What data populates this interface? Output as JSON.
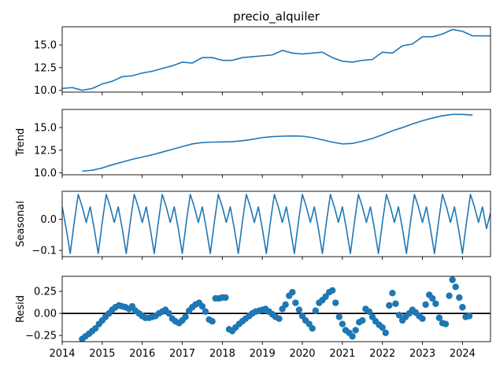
{
  "chart_data": {
    "type": "line",
    "title": "precio_alquiler",
    "x_ticks": [
      "2014",
      "2015",
      "2016",
      "2017",
      "2018",
      "2019",
      "2020",
      "2021",
      "2022",
      "2023",
      "2024"
    ],
    "xlim": [
      2014.0,
      2024.7
    ],
    "line_color": "#1f77b4",
    "zero_line_color": "#000000",
    "panels": [
      {
        "name": "observed",
        "ylabel": "",
        "kind": "line",
        "ylim": [
          9.8,
          17.0
        ],
        "yticks": [
          "10.0",
          "12.5",
          "15.0"
        ],
        "ytick_values": [
          10.0,
          12.5,
          15.0
        ],
        "x": [
          2014.0,
          2014.25,
          2014.5,
          2014.75,
          2015.0,
          2015.25,
          2015.5,
          2015.75,
          2016.0,
          2016.25,
          2016.5,
          2016.75,
          2017.0,
          2017.25,
          2017.5,
          2017.75,
          2018.0,
          2018.25,
          2018.5,
          2018.75,
          2019.0,
          2019.25,
          2019.5,
          2019.75,
          2020.0,
          2020.25,
          2020.5,
          2020.75,
          2021.0,
          2021.25,
          2021.5,
          2021.75,
          2022.0,
          2022.25,
          2022.5,
          2022.75,
          2023.0,
          2023.25,
          2023.5,
          2023.75,
          2024.0,
          2024.25,
          2024.5,
          2024.75
        ],
        "y": [
          10.2,
          10.3,
          10.0,
          10.2,
          10.7,
          11.0,
          11.5,
          11.6,
          11.9,
          12.1,
          12.4,
          12.7,
          13.1,
          13.0,
          13.6,
          13.6,
          13.3,
          13.3,
          13.6,
          13.7,
          13.8,
          13.9,
          14.4,
          14.1,
          14.0,
          14.1,
          14.2,
          13.6,
          13.2,
          13.1,
          13.3,
          13.4,
          14.2,
          14.1,
          14.9,
          15.1,
          15.9,
          15.9,
          16.2,
          16.7,
          16.5,
          16.0,
          16.0,
          16.0
        ]
      },
      {
        "name": "trend",
        "ylabel": "Trend",
        "kind": "line",
        "ylim": [
          9.8,
          17.0
        ],
        "yticks": [
          "10.0",
          "12.5",
          "15.0"
        ],
        "ytick_values": [
          10.0,
          12.5,
          15.0
        ],
        "x": [
          2014.5,
          2014.75,
          2015.0,
          2015.25,
          2015.5,
          2015.75,
          2016.0,
          2016.25,
          2016.5,
          2016.75,
          2017.0,
          2017.25,
          2017.5,
          2017.75,
          2018.0,
          2018.25,
          2018.5,
          2018.75,
          2019.0,
          2019.25,
          2019.5,
          2019.75,
          2020.0,
          2020.25,
          2020.5,
          2020.75,
          2021.0,
          2021.25,
          2021.5,
          2021.75,
          2022.0,
          2022.25,
          2022.5,
          2022.75,
          2023.0,
          2023.25,
          2023.5,
          2023.75,
          2024.0,
          2024.25
        ],
        "y": [
          10.2,
          10.3,
          10.55,
          10.9,
          11.2,
          11.5,
          11.75,
          12.0,
          12.3,
          12.6,
          12.9,
          13.2,
          13.35,
          13.4,
          13.42,
          13.45,
          13.55,
          13.7,
          13.9,
          14.0,
          14.05,
          14.08,
          14.05,
          13.9,
          13.65,
          13.4,
          13.2,
          13.25,
          13.5,
          13.8,
          14.2,
          14.65,
          15.0,
          15.4,
          15.75,
          16.05,
          16.3,
          16.45,
          16.45,
          16.38
        ]
      },
      {
        "name": "seasonal",
        "ylabel": "Seasonal",
        "kind": "line",
        "ylim": [
          -0.12,
          0.09
        ],
        "yticks": [
          "0.0",
          "−0.1"
        ],
        "ytick_values": [
          0.0,
          -0.1
        ],
        "x": [
          2014.0,
          2014.1,
          2014.2,
          2014.3,
          2014.4,
          2014.5,
          2014.6,
          2014.7,
          2014.8,
          2014.9,
          2015.0,
          2015.1,
          2015.2,
          2015.3,
          2015.4,
          2015.5,
          2015.6,
          2015.7,
          2015.8,
          2015.9,
          2016.0,
          2016.1,
          2016.2,
          2016.3,
          2016.4,
          2016.5,
          2016.6,
          2016.7,
          2016.8,
          2016.9,
          2017.0,
          2017.1,
          2017.2,
          2017.3,
          2017.4,
          2017.5,
          2017.6,
          2017.7,
          2017.8,
          2017.9,
          2018.0,
          2018.1,
          2018.2,
          2018.3,
          2018.4,
          2018.5,
          2018.6,
          2018.7,
          2018.8,
          2018.9,
          2019.0,
          2019.1,
          2019.2,
          2019.3,
          2019.4,
          2019.5,
          2019.6,
          2019.7,
          2019.8,
          2019.9,
          2020.0,
          2020.1,
          2020.2,
          2020.3,
          2020.4,
          2020.5,
          2020.6,
          2020.7,
          2020.8,
          2020.9,
          2021.0,
          2021.1,
          2021.2,
          2021.3,
          2021.4,
          2021.5,
          2021.6,
          2021.7,
          2021.8,
          2021.9,
          2022.0,
          2022.1,
          2022.2,
          2022.3,
          2022.4,
          2022.5,
          2022.6,
          2022.7,
          2022.8,
          2022.9,
          2023.0,
          2023.1,
          2023.2,
          2023.3,
          2023.4,
          2023.5,
          2023.6,
          2023.7,
          2023.8,
          2023.9,
          2024.0,
          2024.1,
          2024.2,
          2024.3,
          2024.4,
          2024.5,
          2024.6,
          2024.7
        ],
        "y": [
          0.04,
          -0.03,
          -0.11,
          -0.01,
          0.08,
          0.04,
          -0.01,
          0.04,
          -0.03,
          -0.11,
          -0.01,
          0.08,
          0.04,
          -0.01,
          0.04,
          -0.03,
          -0.11,
          -0.01,
          0.08,
          0.04,
          -0.01,
          0.04,
          -0.03,
          -0.11,
          -0.01,
          0.08,
          0.04,
          -0.01,
          0.04,
          -0.03,
          -0.11,
          -0.01,
          0.08,
          0.04,
          -0.01,
          0.04,
          -0.03,
          -0.11,
          -0.01,
          0.08,
          0.04,
          -0.01,
          0.04,
          -0.03,
          -0.11,
          -0.01,
          0.08,
          0.04,
          -0.01,
          0.04,
          -0.03,
          -0.11,
          -0.01,
          0.08,
          0.04,
          -0.01,
          0.04,
          -0.03,
          -0.11,
          -0.01,
          0.08,
          0.04,
          -0.01,
          0.04,
          -0.03,
          -0.11,
          -0.01,
          0.08,
          0.04,
          -0.01,
          0.04,
          -0.03,
          -0.11,
          -0.01,
          0.08,
          0.04,
          -0.01,
          0.04,
          -0.03,
          -0.11,
          -0.01,
          0.08,
          0.04,
          -0.01,
          0.04,
          -0.03,
          -0.11,
          -0.01,
          0.08,
          0.04,
          -0.01,
          0.04,
          -0.03,
          -0.11,
          -0.01,
          0.08,
          0.04,
          -0.01,
          0.04,
          -0.03,
          -0.11,
          -0.01,
          0.08,
          0.04,
          -0.01,
          0.04,
          -0.03,
          0.02
        ]
      },
      {
        "name": "resid",
        "ylabel": "Resid",
        "kind": "scatter",
        "ylim": [
          -0.32,
          0.42
        ],
        "yticks": [
          "0.25",
          "0.00",
          "−0.25"
        ],
        "ytick_values": [
          0.25,
          0.0,
          -0.25
        ],
        "zero_line": true,
        "x": [
          2014.5,
          2014.58,
          2014.67,
          2014.75,
          2014.83,
          2014.92,
          2015.0,
          2015.08,
          2015.17,
          2015.25,
          2015.33,
          2015.42,
          2015.5,
          2015.58,
          2015.67,
          2015.75,
          2015.83,
          2015.92,
          2016.0,
          2016.08,
          2016.17,
          2016.25,
          2016.33,
          2016.42,
          2016.5,
          2016.58,
          2016.67,
          2016.75,
          2016.83,
          2016.92,
          2017.0,
          2017.08,
          2017.17,
          2017.25,
          2017.33,
          2017.42,
          2017.5,
          2017.58,
          2017.67,
          2017.75,
          2017.83,
          2017.92,
          2018.0,
          2018.08,
          2018.17,
          2018.25,
          2018.33,
          2018.42,
          2018.5,
          2018.58,
          2018.67,
          2018.75,
          2018.83,
          2018.92,
          2019.0,
          2019.08,
          2019.17,
          2019.25,
          2019.33,
          2019.42,
          2019.5,
          2019.58,
          2019.67,
          2019.75,
          2019.83,
          2019.92,
          2020.0,
          2020.08,
          2020.17,
          2020.25,
          2020.33,
          2020.42,
          2020.5,
          2020.58,
          2020.67,
          2020.75,
          2020.83,
          2020.92,
          2021.0,
          2021.08,
          2021.17,
          2021.25,
          2021.33,
          2021.42,
          2021.5,
          2021.58,
          2021.67,
          2021.75,
          2021.83,
          2021.92,
          2022.0,
          2022.08,
          2022.17,
          2022.25,
          2022.33,
          2022.42,
          2022.5,
          2022.58,
          2022.67,
          2022.75,
          2022.83,
          2022.92,
          2023.0,
          2023.08,
          2023.17,
          2023.25,
          2023.33,
          2023.42,
          2023.5,
          2023.58,
          2023.67,
          2023.75,
          2023.83,
          2023.92,
          2024.0,
          2024.08,
          2024.17
        ],
        "y": [
          -0.29,
          -0.26,
          -0.23,
          -0.2,
          -0.17,
          -0.12,
          -0.08,
          -0.04,
          0.0,
          0.04,
          0.07,
          0.09,
          0.08,
          0.07,
          0.05,
          0.08,
          0.03,
          0.0,
          -0.03,
          -0.05,
          -0.05,
          -0.04,
          -0.03,
          0.0,
          0.02,
          0.04,
          0.0,
          -0.06,
          -0.09,
          -0.11,
          -0.08,
          -0.04,
          0.03,
          0.07,
          0.1,
          0.12,
          0.08,
          0.02,
          -0.07,
          -0.09,
          0.17,
          0.17,
          0.18,
          0.18,
          -0.18,
          -0.2,
          -0.16,
          -0.12,
          -0.09,
          -0.06,
          -0.03,
          0.0,
          0.02,
          0.03,
          0.04,
          0.05,
          0.02,
          -0.01,
          -0.04,
          -0.06,
          0.05,
          0.1,
          0.2,
          0.24,
          0.12,
          0.04,
          -0.03,
          -0.08,
          -0.12,
          -0.17,
          0.03,
          0.12,
          0.15,
          0.19,
          0.24,
          0.26,
          0.12,
          -0.04,
          -0.12,
          -0.19,
          -0.22,
          -0.26,
          -0.19,
          -0.1,
          -0.08,
          0.05,
          0.02,
          -0.04,
          -0.09,
          -0.13,
          -0.16,
          -0.22,
          0.09,
          0.23,
          0.11,
          -0.02,
          -0.08,
          -0.04,
          0.0,
          0.04,
          0.01,
          -0.03,
          -0.06,
          0.1,
          0.21,
          0.17,
          0.11,
          -0.05,
          -0.11,
          -0.12,
          0.2,
          0.38,
          0.3,
          0.18,
          0.07,
          -0.04,
          -0.03
        ]
      }
    ]
  }
}
